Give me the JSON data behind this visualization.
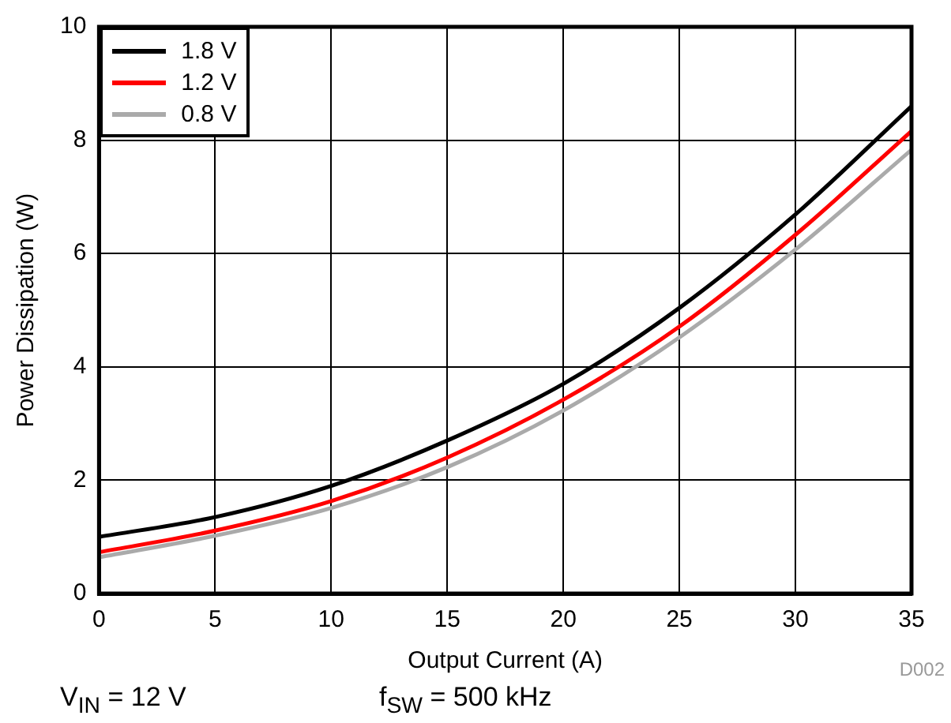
{
  "chart_data": {
    "type": "line",
    "xlabel": "Output Current (A)",
    "ylabel": "Power Dissipation (W)",
    "x": [
      0,
      5,
      10,
      15,
      20,
      25,
      30,
      35
    ],
    "series": [
      {
        "name": "1.8 V",
        "color": "#000000",
        "values": [
          1.0,
          1.35,
          1.9,
          2.7,
          3.7,
          5.04,
          6.69,
          8.6
        ]
      },
      {
        "name": "1.2 V",
        "color": "#ff0000",
        "values": [
          0.73,
          1.11,
          1.63,
          2.4,
          3.42,
          4.71,
          6.33,
          8.16
        ]
      },
      {
        "name": "0.8 V",
        "color": "#aaaaaa",
        "values": [
          0.64,
          1.02,
          1.51,
          2.23,
          3.23,
          4.52,
          6.07,
          7.83
        ]
      }
    ],
    "xlim": [
      0,
      35
    ],
    "xticks": [
      0,
      5,
      10,
      15,
      20,
      25,
      30,
      35
    ],
    "ylim": [
      0,
      10
    ],
    "yticks": [
      0,
      2,
      4,
      6,
      8,
      10
    ],
    "grid": true,
    "legend": "top left",
    "marker": "none",
    "line_style": "solid",
    "annotations": [
      "D002",
      "V$_{IN}$ = 12 V",
      "f$_{SW}$ = 500 kHz"
    ]
  }
}
